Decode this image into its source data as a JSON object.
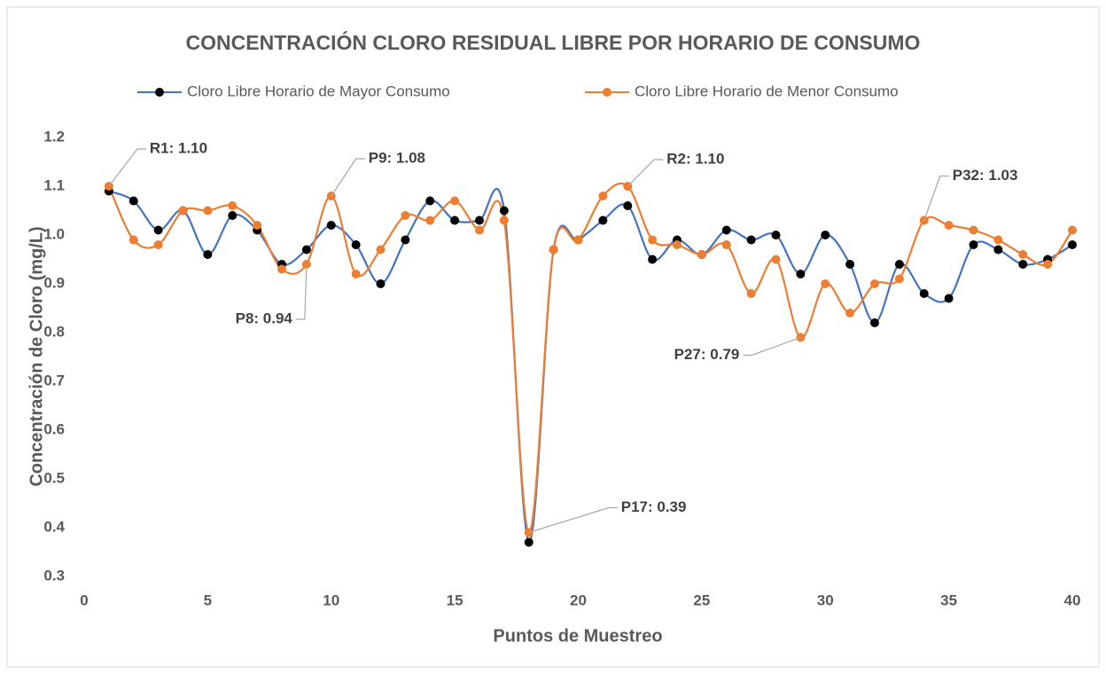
{
  "chart_data": {
    "type": "line",
    "title": "CONCENTRACIÓN CLORO RESIDUAL LIBRE POR HORARIO DE CONSUMO",
    "x_label": "Puntos de Muestreo",
    "y_label": "Concentración de Cloro (mg/L)",
    "x": [
      1,
      2,
      3,
      4,
      5,
      6,
      7,
      8,
      9,
      10,
      11,
      12,
      13,
      14,
      15,
      16,
      17,
      18,
      19,
      20,
      21,
      22,
      23,
      24,
      25,
      26,
      27,
      28,
      29,
      30,
      31,
      32,
      33,
      34,
      35,
      36,
      37,
      38,
      39,
      40
    ],
    "series": [
      {
        "name": "Cloro Libre Horario de Mayor Consumo",
        "color": "#4472c4",
        "marker_color": "#000000",
        "values": [
          1.09,
          1.07,
          1.01,
          1.05,
          0.96,
          1.04,
          1.01,
          0.94,
          0.97,
          1.02,
          0.98,
          0.9,
          0.99,
          1.07,
          1.03,
          1.03,
          1.05,
          0.37,
          0.97,
          0.99,
          1.03,
          1.06,
          0.95,
          0.99,
          0.96,
          1.01,
          0.99,
          1.0,
          0.92,
          1.0,
          0.94,
          0.82,
          0.94,
          0.88,
          0.87,
          0.98,
          0.97,
          0.94,
          0.95,
          0.98
        ]
      },
      {
        "name": "Cloro Libre Horario de Menor Consumo",
        "color": "#ed7d31",
        "marker_color": "#ed7d31",
        "values": [
          1.1,
          0.99,
          0.98,
          1.05,
          1.05,
          1.06,
          1.02,
          0.93,
          0.94,
          1.08,
          0.92,
          0.97,
          1.04,
          1.03,
          1.07,
          1.01,
          1.03,
          0.39,
          0.97,
          0.99,
          1.08,
          1.1,
          0.99,
          0.98,
          0.96,
          0.98,
          0.88,
          0.95,
          0.79,
          0.9,
          0.84,
          0.9,
          0.91,
          1.03,
          1.02,
          1.01,
          0.99,
          0.96,
          0.94,
          1.01
        ]
      }
    ],
    "annotations": [
      {
        "label": "R1: 1.10",
        "x": 1
      },
      {
        "label": "P8: 0.94",
        "x": 9
      },
      {
        "label": "P9: 1.08",
        "x": 10
      },
      {
        "label": "P17: 0.39",
        "x": 18
      },
      {
        "label": "R2: 1.10",
        "x": 22
      },
      {
        "label": "P27: 0.79",
        "x": 29
      },
      {
        "label": "P32: 1.03",
        "x": 34
      }
    ],
    "xlim": [
      0,
      40
    ],
    "xticks": [
      0,
      5,
      10,
      15,
      20,
      25,
      30,
      35,
      40
    ],
    "ylim": [
      0.3,
      1.2
    ],
    "yticks": [
      0.3,
      0.4,
      0.5,
      0.6,
      0.7,
      0.8,
      0.9,
      {
        "value": 1,
        "label": "1.0"
      },
      1.1,
      1.2
    ],
    "grid": false,
    "legend": "top"
  }
}
